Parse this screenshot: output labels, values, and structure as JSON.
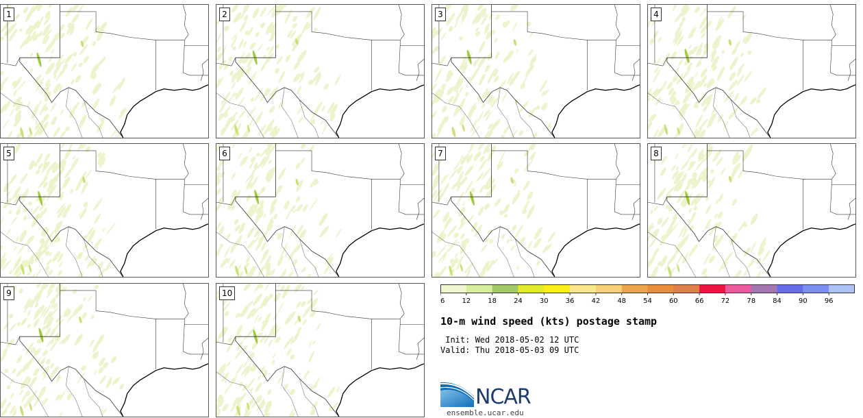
{
  "title": "10-m wind speed (kts) postage stamp",
  "init_line": " Init: Wed 2018-05-02 12 UTC",
  "valid_line": "Valid: Thu 2018-05-03 09 UTC",
  "logo": {
    "name": "NCAR",
    "url": "ensemble.ucar.edu"
  },
  "members": [
    "1",
    "2",
    "3",
    "4",
    "5",
    "6",
    "7",
    "8",
    "9",
    "10"
  ],
  "colorbar": {
    "units": "kts",
    "ticks": [
      "6",
      "12",
      "18",
      "24",
      "30",
      "36",
      "42",
      "48",
      "54",
      "60",
      "66",
      "72",
      "78",
      "84",
      "90",
      "96"
    ],
    "colors": [
      "#f0f5cf",
      "#d8ee9f",
      "#a3c868",
      "#dfeb2b",
      "#fcee1a",
      "#f8e68b",
      "#f7d178",
      "#eaa54a",
      "#e98d3a",
      "#df7f4a",
      "#eb1443",
      "#ea5a9c",
      "#a276ae",
      "#676de8",
      "#7c8ef2",
      "#aec2f6"
    ]
  },
  "colors": {
    "light_wind": "#eef3cd",
    "moderate_wind": "#c8e27a",
    "strong_wind": "#9fca3e",
    "state_border": "#333333",
    "country_border": "#777777"
  }
}
